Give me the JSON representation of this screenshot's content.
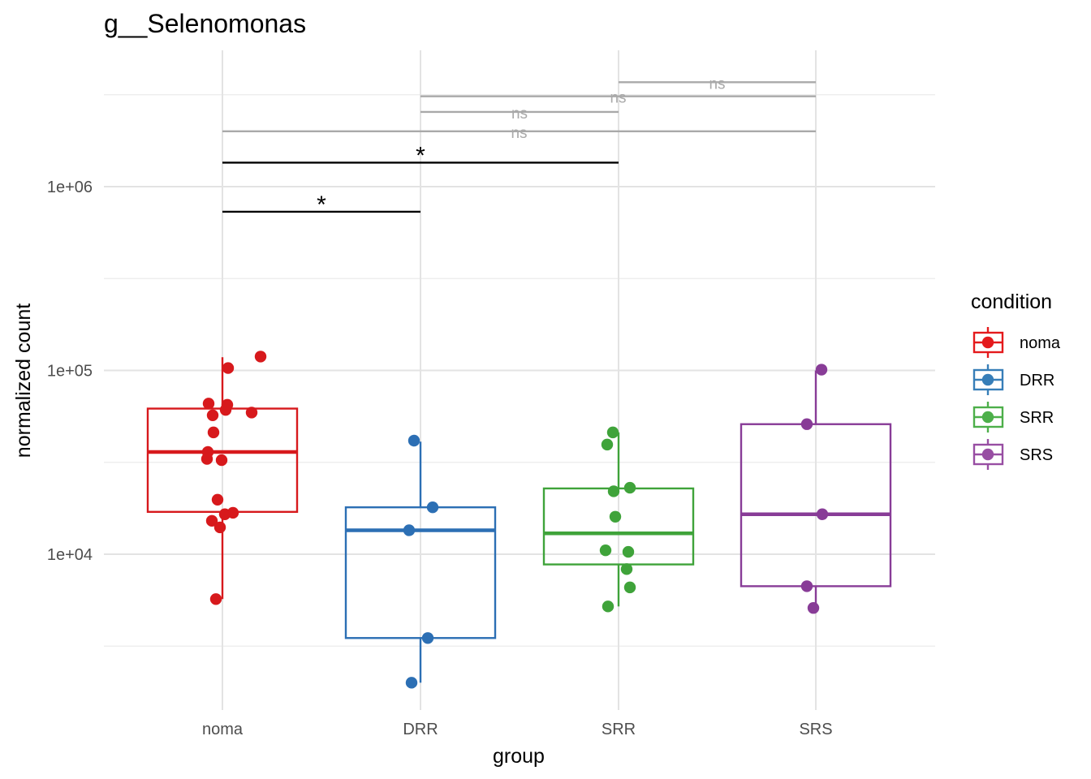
{
  "chart_data": {
    "type": "box",
    "title": "g__Selenomonas",
    "xlabel": "group",
    "ylabel": "normalized count",
    "y_scale": "log10",
    "ylim": [
      1500,
      5000000
    ],
    "yticks": [
      {
        "value": 10000,
        "label": "1e+04"
      },
      {
        "value": 100000,
        "label": "1e+05"
      },
      {
        "value": 1000000,
        "label": "1e+06"
      }
    ],
    "grid": true,
    "categories": [
      "noma",
      "DRR",
      "SRR",
      "SRS"
    ],
    "legend": {
      "title": "condition",
      "position": "right",
      "items": [
        {
          "label": "noma",
          "color": "#e41a1c"
        },
        {
          "label": "DRR",
          "color": "#377eb8"
        },
        {
          "label": "SRR",
          "color": "#4daf4a"
        },
        {
          "label": "SRS",
          "color": "#984ea3"
        }
      ]
    },
    "groups": [
      {
        "name": "noma",
        "color": "#d7191c",
        "box": {
          "whisker_low": 5700,
          "q1": 17000,
          "median": 36000,
          "q3": 62000,
          "whisker_high": 118000
        },
        "points": [
          {
            "x_jitter": 0.47,
            "y": 119000
          },
          {
            "x_jitter": 0.07,
            "y": 103000
          },
          {
            "x_jitter": -0.17,
            "y": 66000
          },
          {
            "x_jitter": 0.06,
            "y": 65000
          },
          {
            "x_jitter": 0.04,
            "y": 61000
          },
          {
            "x_jitter": 0.36,
            "y": 59000
          },
          {
            "x_jitter": -0.12,
            "y": 57000
          },
          {
            "x_jitter": -0.11,
            "y": 46000
          },
          {
            "x_jitter": -0.18,
            "y": 36000
          },
          {
            "x_jitter": -0.19,
            "y": 33000
          },
          {
            "x_jitter": -0.01,
            "y": 32500
          },
          {
            "x_jitter": -0.06,
            "y": 19800
          },
          {
            "x_jitter": 0.13,
            "y": 16800
          },
          {
            "x_jitter": 0.03,
            "y": 16500
          },
          {
            "x_jitter": -0.13,
            "y": 15200
          },
          {
            "x_jitter": -0.03,
            "y": 14000
          },
          {
            "x_jitter": -0.08,
            "y": 5700
          }
        ]
      },
      {
        "name": "DRR",
        "color": "#2c6fb4",
        "box": {
          "whisker_low": 2000,
          "q1": 3500,
          "median": 13500,
          "q3": 18000,
          "whisker_high": 41000
        },
        "points": [
          {
            "x_jitter": -0.08,
            "y": 41500
          },
          {
            "x_jitter": 0.15,
            "y": 18000
          },
          {
            "x_jitter": -0.14,
            "y": 13500
          },
          {
            "x_jitter": 0.09,
            "y": 3500
          },
          {
            "x_jitter": -0.11,
            "y": 2000
          }
        ]
      },
      {
        "name": "SRR",
        "color": "#3fa33a",
        "box": {
          "whisker_low": 5200,
          "q1": 8800,
          "median": 13000,
          "q3": 22800,
          "whisker_high": 46000
        },
        "points": [
          {
            "x_jitter": -0.07,
            "y": 46000
          },
          {
            "x_jitter": -0.14,
            "y": 39500
          },
          {
            "x_jitter": 0.14,
            "y": 23000
          },
          {
            "x_jitter": -0.06,
            "y": 22000
          },
          {
            "x_jitter": -0.04,
            "y": 16000
          },
          {
            "x_jitter": -0.16,
            "y": 10500
          },
          {
            "x_jitter": 0.12,
            "y": 10300
          },
          {
            "x_jitter": 0.1,
            "y": 8300
          },
          {
            "x_jitter": 0.14,
            "y": 6600
          },
          {
            "x_jitter": -0.13,
            "y": 5200
          }
        ]
      },
      {
        "name": "SRS",
        "color": "#883c97",
        "box": {
          "whisker_low": 5100,
          "q1": 6700,
          "median": 16500,
          "q3": 51000,
          "whisker_high": 100000
        },
        "points": [
          {
            "x_jitter": 0.07,
            "y": 101000
          },
          {
            "x_jitter": -0.11,
            "y": 51000
          },
          {
            "x_jitter": 0.08,
            "y": 16500
          },
          {
            "x_jitter": -0.11,
            "y": 6700
          },
          {
            "x_jitter": -0.03,
            "y": 5100
          }
        ]
      }
    ],
    "comparisons": [
      {
        "from": "SRR",
        "to": "SRS",
        "y": 3700000,
        "label": "ns",
        "color": "#a9a9a9"
      },
      {
        "from": "DRR",
        "to": "SRS",
        "y": 3100000,
        "label": "ns",
        "color": "#a9a9a9"
      },
      {
        "from": "DRR",
        "to": "SRR",
        "y": 2550000,
        "label": "ns",
        "color": "#a9a9a9"
      },
      {
        "from": "noma",
        "to": "SRS",
        "y": 2000000,
        "label": "ns",
        "color": "#a9a9a9"
      },
      {
        "from": "noma",
        "to": "SRR",
        "y": 1350000,
        "label": "*",
        "color": "#000000"
      },
      {
        "from": "noma",
        "to": "DRR",
        "y": 730000,
        "label": "*",
        "color": "#000000"
      }
    ]
  }
}
